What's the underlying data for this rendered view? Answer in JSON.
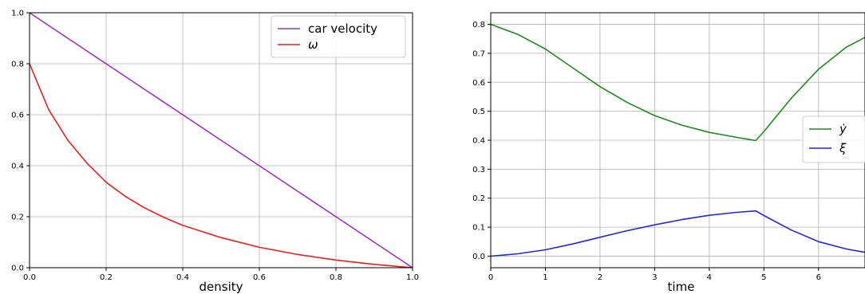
{
  "chart_data": [
    {
      "type": "line",
      "xlabel": "density",
      "ylabel": "",
      "xlim": [
        0,
        1
      ],
      "ylim": [
        0,
        1
      ],
      "grid": true,
      "legend_position": "top-right",
      "xticks": [
        "0.0",
        "0.2",
        "0.4",
        "0.6",
        "0.8",
        "1.0"
      ],
      "yticks": [
        "0.0",
        "0.2",
        "0.4",
        "0.6",
        "0.8",
        "1.0"
      ],
      "series": [
        {
          "name": "car velocity",
          "color": "#9b30c0",
          "x": [
            0,
            0.1,
            0.2,
            0.3,
            0.4,
            0.5,
            0.6,
            0.7,
            0.8,
            0.9,
            1.0
          ],
          "y": [
            1.0,
            0.9,
            0.8,
            0.7,
            0.6,
            0.5,
            0.4,
            0.3,
            0.2,
            0.1,
            0.0
          ]
        },
        {
          "name": "ω",
          "color": "#ee1c1c",
          "x": [
            0,
            0.05,
            0.1,
            0.15,
            0.2,
            0.25,
            0.3,
            0.35,
            0.4,
            0.5,
            0.6,
            0.7,
            0.8,
            0.9,
            1.0
          ],
          "y": [
            0.8,
            0.62,
            0.5,
            0.41,
            0.335,
            0.28,
            0.235,
            0.198,
            0.166,
            0.118,
            0.08,
            0.052,
            0.03,
            0.013,
            0.0
          ]
        }
      ]
    },
    {
      "type": "line",
      "xlabel": "time",
      "ylabel": "",
      "xlim": [
        0,
        6.85
      ],
      "ylim": [
        -0.04,
        0.84
      ],
      "grid": true,
      "legend_position": "center-right",
      "xticks": [
        "0",
        "1",
        "2",
        "3",
        "4",
        "5",
        "6"
      ],
      "yticks": [
        "0.0",
        "0.1",
        "0.2",
        "0.3",
        "0.4",
        "0.5",
        "0.6",
        "0.7",
        "0.8"
      ],
      "series": [
        {
          "name": "ẏ",
          "color": "#1e8a1e",
          "x": [
            0,
            0.5,
            1,
            1.5,
            2,
            2.5,
            3,
            3.5,
            4,
            4.5,
            4.85,
            5.0,
            5.5,
            6.0,
            6.5,
            6.85
          ],
          "y": [
            0.8,
            0.765,
            0.715,
            0.65,
            0.585,
            0.53,
            0.485,
            0.452,
            0.427,
            0.41,
            0.399,
            0.43,
            0.545,
            0.645,
            0.72,
            0.755
          ]
        },
        {
          "name": "ξ",
          "color": "#2323ee",
          "x": [
            0,
            0.5,
            1,
            1.5,
            2,
            2.5,
            3,
            3.5,
            4,
            4.5,
            4.85,
            5.0,
            5.5,
            6.0,
            6.5,
            6.85
          ],
          "y": [
            0.0,
            0.008,
            0.022,
            0.042,
            0.065,
            0.088,
            0.108,
            0.126,
            0.141,
            0.151,
            0.156,
            0.14,
            0.09,
            0.05,
            0.025,
            0.013
          ]
        }
      ]
    }
  ]
}
